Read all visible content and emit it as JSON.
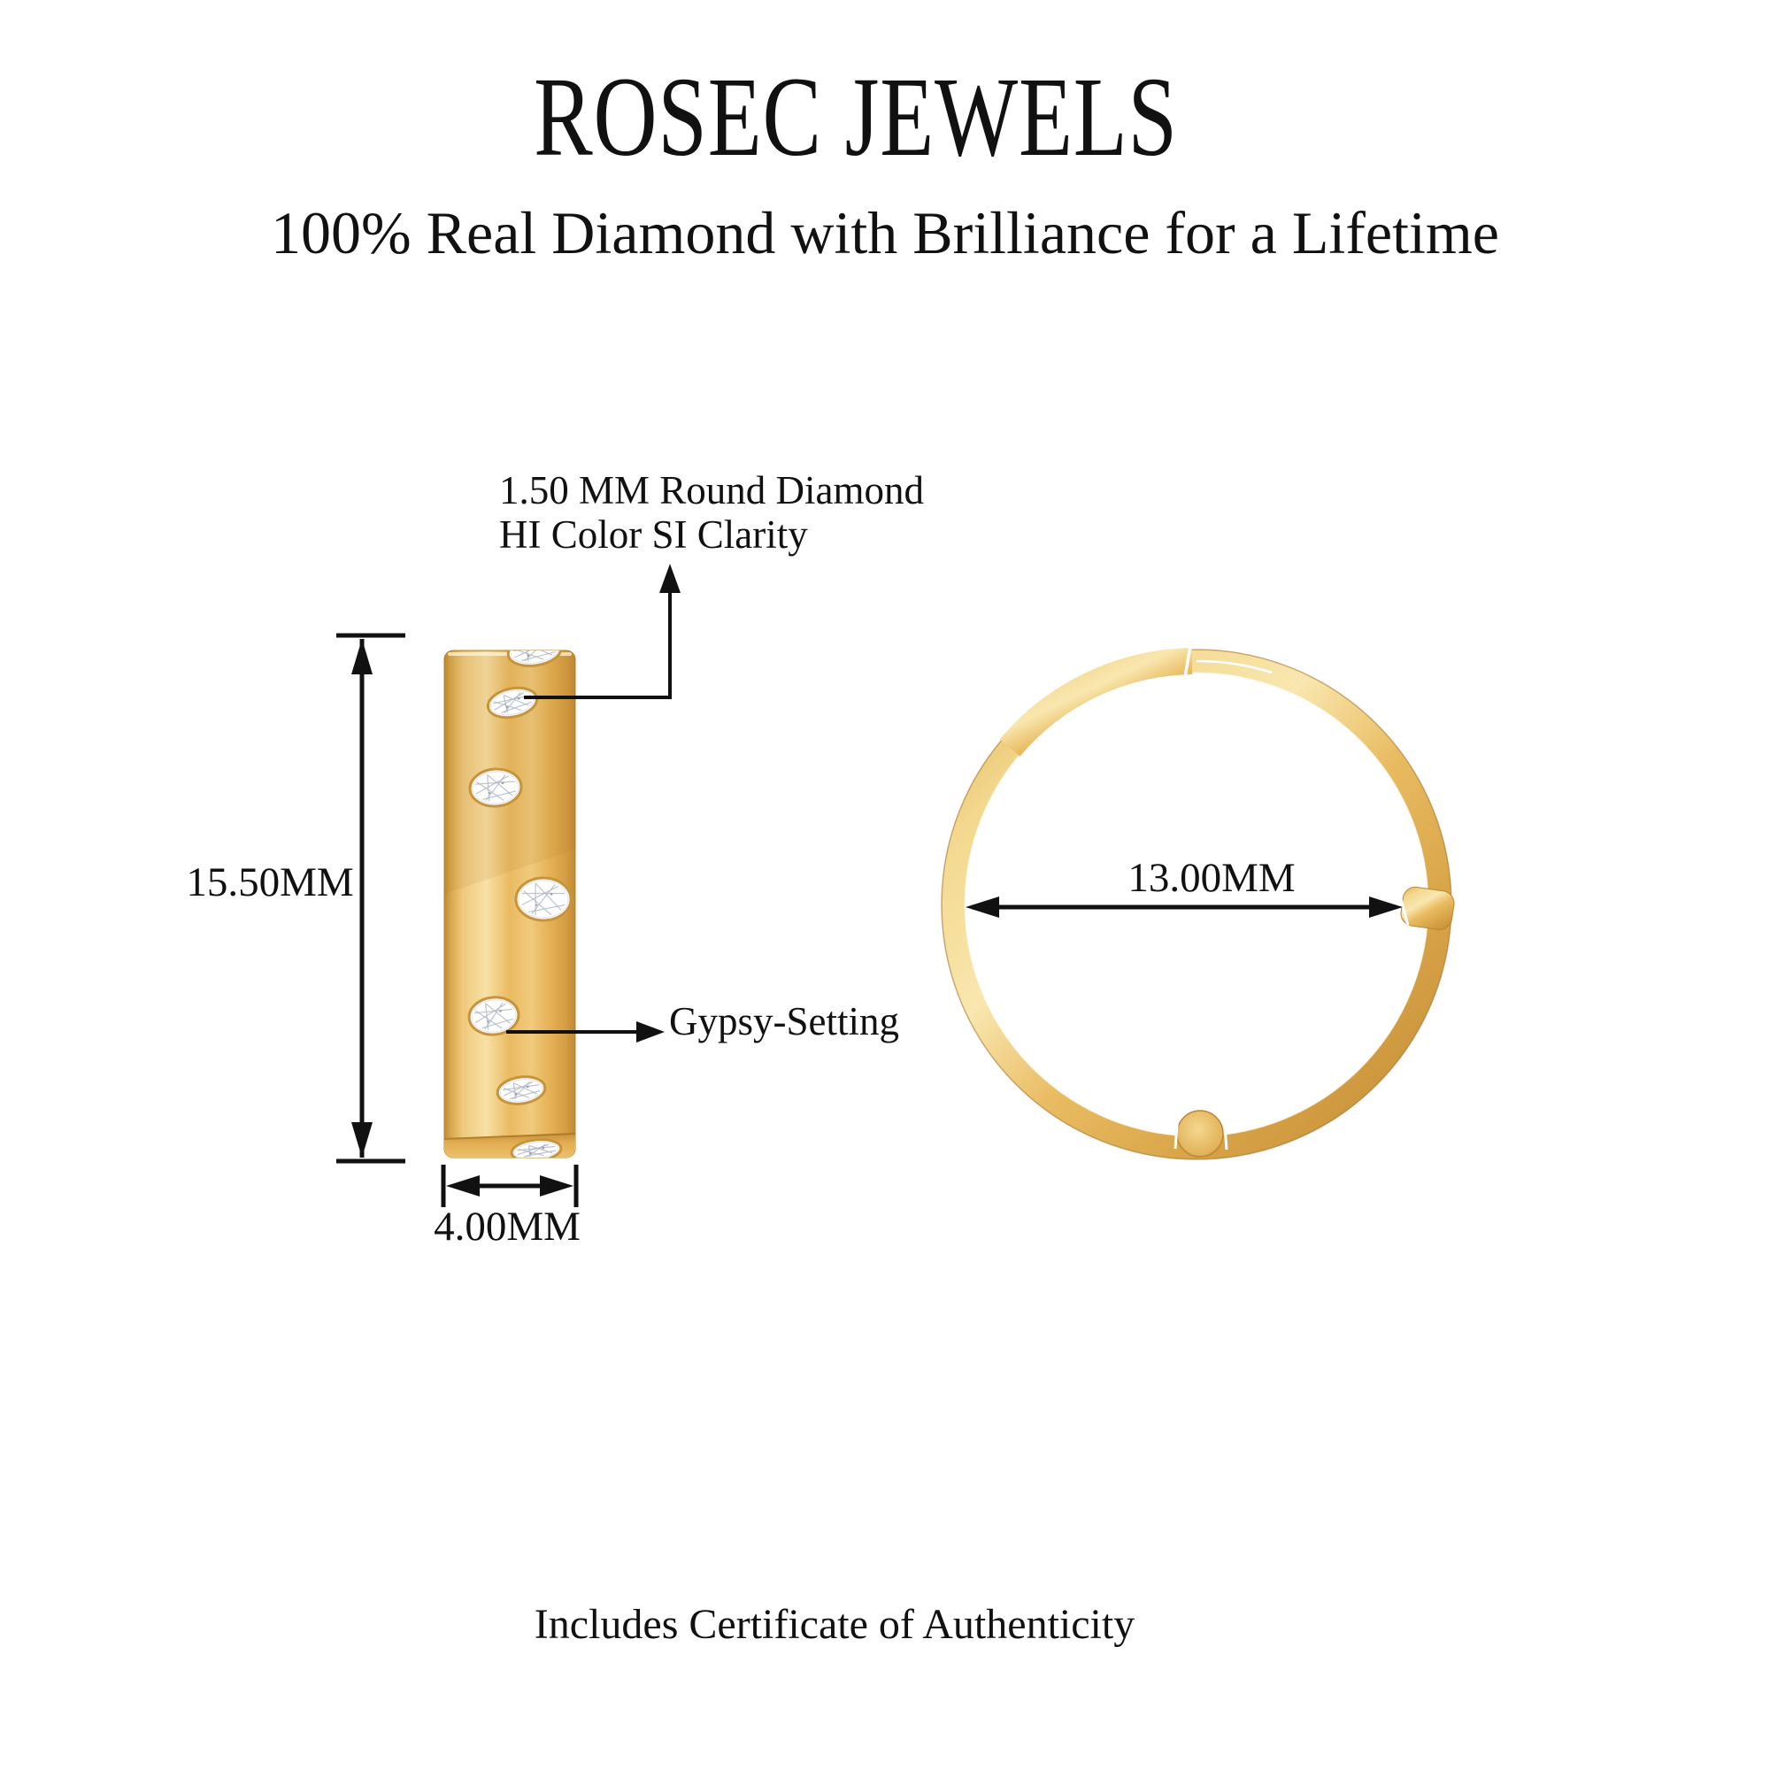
{
  "header": {
    "brand": "ROSEC JEWELS",
    "tagline": "100% Real Diamond with Brilliance for a Lifetime"
  },
  "side_view": {
    "height_dimension": "15.50MM",
    "width_dimension": "4.00MM",
    "stone_note_line1": "1.50 MM Round Diamond",
    "stone_note_line2": "HI Color SI Clarity",
    "setting_note": "Gypsy-Setting"
  },
  "front_view": {
    "inner_diameter_dimension": "13.00MM"
  },
  "footer": {
    "certificate_note": "Includes Certificate of Authenticity"
  },
  "colors": {
    "background": "#ffffff",
    "text": "#111111",
    "annotation_line": "#111111",
    "gold_light": "#f8e3a8",
    "gold_mid": "#e9ba61",
    "gold_dark": "#c0892f",
    "diamond_white": "#ffffff",
    "diamond_facet": "#b3bac7"
  }
}
